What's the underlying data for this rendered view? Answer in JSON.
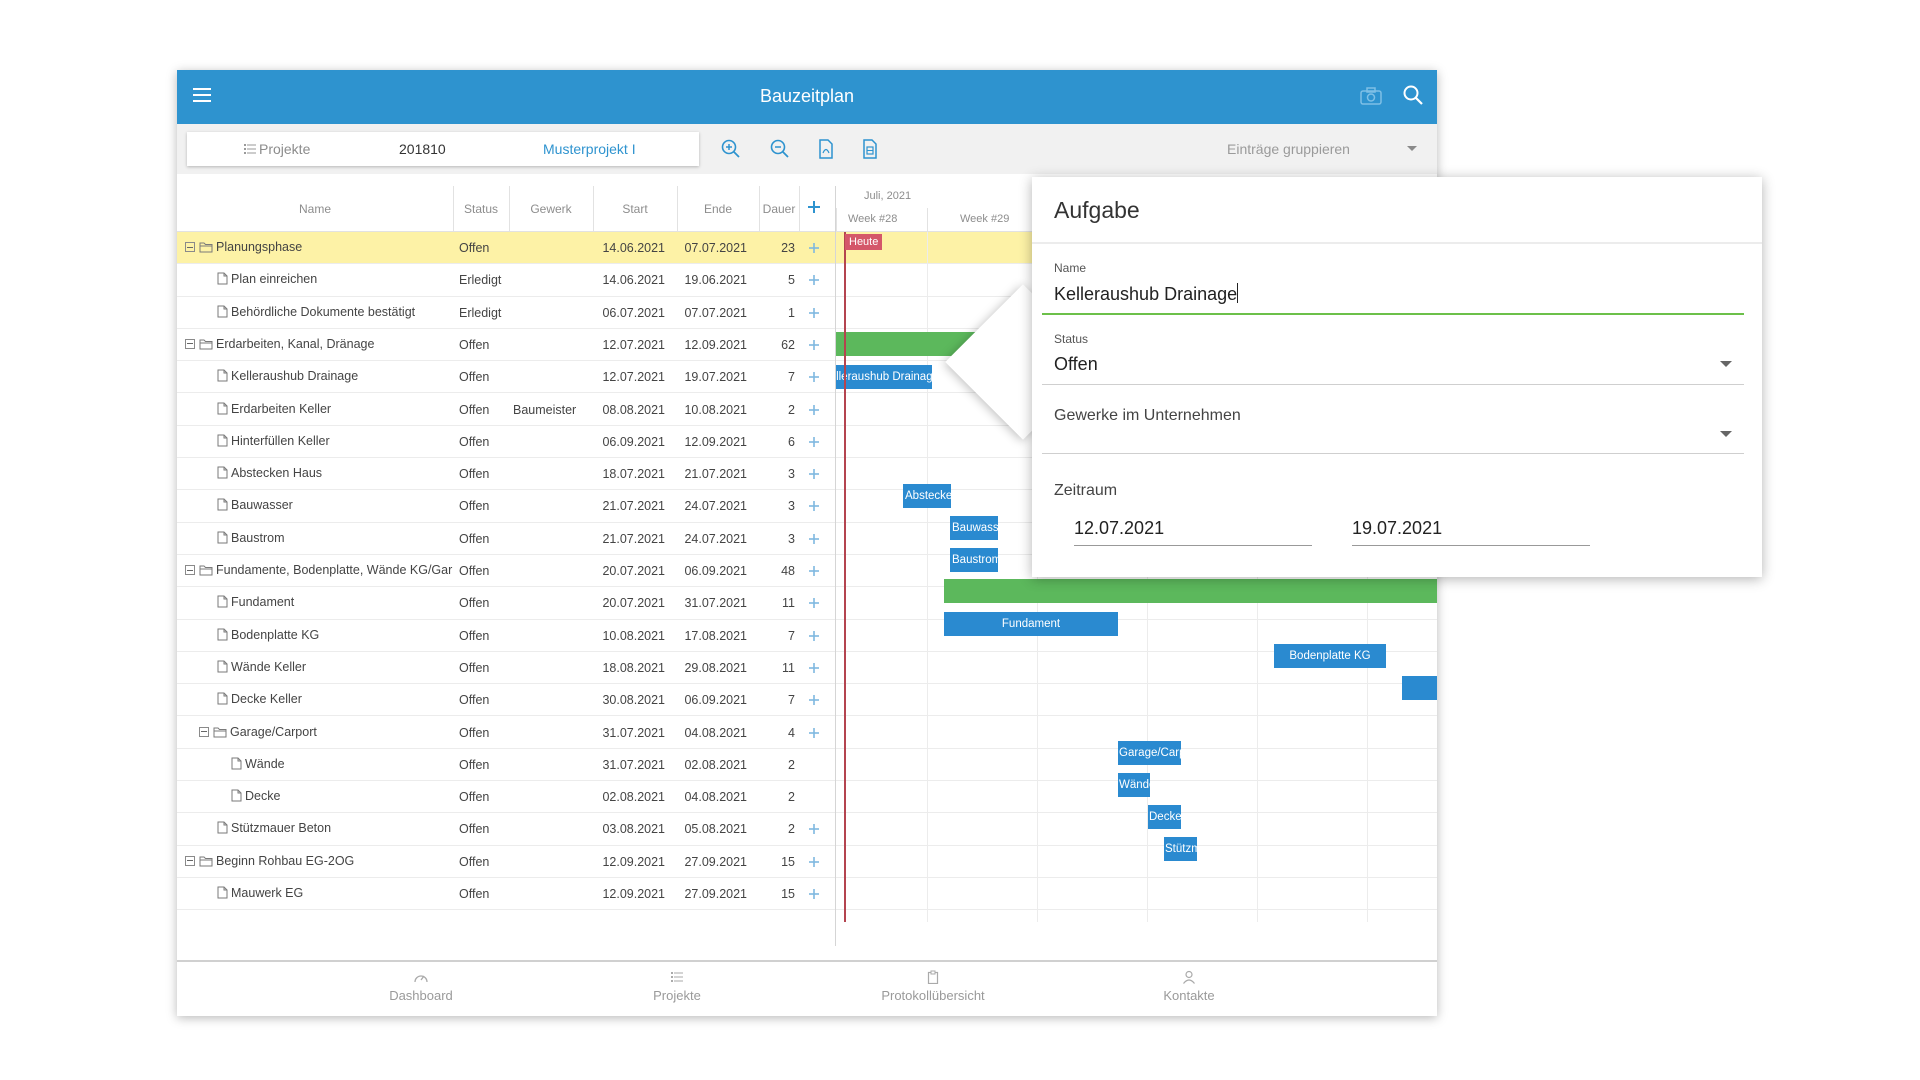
{
  "app": {
    "title": "Bauzeitplan"
  },
  "toolbar": {
    "projects_label": "Projekte",
    "project_number": "201810",
    "project_name": "Musterprojekt I",
    "grouping": "Einträge gruppieren"
  },
  "grid": {
    "columns": [
      "Name",
      "Status",
      "Gewerk",
      "Start",
      "Ende",
      "Dauer"
    ],
    "rows": [
      {
        "name": "Planungsphase",
        "status": "Offen",
        "gewerk": "",
        "start": "14.06.2021",
        "end": "07.07.2021",
        "dur": "23"
      },
      {
        "name": "Plan einreichen",
        "status": "Erledigt",
        "gewerk": "",
        "start": "14.06.2021",
        "end": "19.06.2021",
        "dur": "5"
      },
      {
        "name": "Behördliche Dokumente bestätigt",
        "status": "Erledigt",
        "gewerk": "",
        "start": "06.07.2021",
        "end": "07.07.2021",
        "dur": "1"
      },
      {
        "name": "Erdarbeiten, Kanal, Dränage",
        "status": "Offen",
        "gewerk": "",
        "start": "12.07.2021",
        "end": "12.09.2021",
        "dur": "62"
      },
      {
        "name": "Kelleraushub Drainage",
        "status": "Offen",
        "gewerk": "",
        "start": "12.07.2021",
        "end": "19.07.2021",
        "dur": "7"
      },
      {
        "name": "Erdarbeiten Keller",
        "status": "Offen",
        "gewerk": "Baumeister",
        "start": "08.08.2021",
        "end": "10.08.2021",
        "dur": "2"
      },
      {
        "name": "Hinterfüllen Keller",
        "status": "Offen",
        "gewerk": "",
        "start": "06.09.2021",
        "end": "12.09.2021",
        "dur": "6"
      },
      {
        "name": "Abstecken Haus",
        "status": "Offen",
        "gewerk": "",
        "start": "18.07.2021",
        "end": "21.07.2021",
        "dur": "3"
      },
      {
        "name": "Bauwasser",
        "status": "Offen",
        "gewerk": "",
        "start": "21.07.2021",
        "end": "24.07.2021",
        "dur": "3"
      },
      {
        "name": "Baustrom",
        "status": "Offen",
        "gewerk": "",
        "start": "21.07.2021",
        "end": "24.07.2021",
        "dur": "3"
      },
      {
        "name": "Fundamente, Bodenplatte, Wände KG/Gar",
        "status": "Offen",
        "gewerk": "",
        "start": "20.07.2021",
        "end": "06.09.2021",
        "dur": "48"
      },
      {
        "name": "Fundament",
        "status": "Offen",
        "gewerk": "",
        "start": "20.07.2021",
        "end": "31.07.2021",
        "dur": "11"
      },
      {
        "name": "Bodenplatte KG",
        "status": "Offen",
        "gewerk": "",
        "start": "10.08.2021",
        "end": "17.08.2021",
        "dur": "7"
      },
      {
        "name": "Wände Keller",
        "status": "Offen",
        "gewerk": "",
        "start": "18.08.2021",
        "end": "29.08.2021",
        "dur": "11"
      },
      {
        "name": "Decke Keller",
        "status": "Offen",
        "gewerk": "",
        "start": "30.08.2021",
        "end": "06.09.2021",
        "dur": "7"
      },
      {
        "name": "Garage/Carport",
        "status": "Offen",
        "gewerk": "",
        "start": "31.07.2021",
        "end": "04.08.2021",
        "dur": "4"
      },
      {
        "name": "Wände",
        "status": "Offen",
        "gewerk": "",
        "start": "31.07.2021",
        "end": "02.08.2021",
        "dur": "2"
      },
      {
        "name": "Decke",
        "status": "Offen",
        "gewerk": "",
        "start": "02.08.2021",
        "end": "04.08.2021",
        "dur": "2"
      },
      {
        "name": "Stützmauer Beton",
        "status": "Offen",
        "gewerk": "",
        "start": "03.08.2021",
        "end": "05.08.2021",
        "dur": "2"
      },
      {
        "name": "Beginn Rohbau EG-2OG",
        "status": "Offen",
        "gewerk": "",
        "start": "12.09.2021",
        "end": "27.09.2021",
        "dur": "15"
      },
      {
        "name": "Mauwerk EG",
        "status": "Offen",
        "gewerk": "",
        "start": "12.09.2021",
        "end": "27.09.2021",
        "dur": "15"
      }
    ]
  },
  "gantt": {
    "month": "Juli, 2021",
    "weeks": [
      "Week #28",
      "Week #29"
    ],
    "today_label": "Heute",
    "bars": {
      "kelleraushub": "Kelleraushub Drainage",
      "abstecken": "Abstecken Haus",
      "bauwasser": "Bauwasser",
      "baustrom": "Baustrom",
      "fundament": "Fundament",
      "bodenplatte": "Bodenplatte KG",
      "garage": "Garage/Carport",
      "waende": "Wände",
      "decke": "Decke",
      "stuetz": "Stützmauer Beton"
    }
  },
  "dialog": {
    "title": "Aufgabe",
    "name_label": "Name",
    "name_value": "Kelleraushub Drainage",
    "status_label": "Status",
    "status_value": "Offen",
    "gewerke_label": "Gewerke im Unternehmen",
    "zeitraum_label": "Zeitraum",
    "date_from": "12.07.2021",
    "date_to": "19.07.2021"
  },
  "nav": {
    "dashboard": "Dashboard",
    "projekte": "Projekte",
    "protokoll": "Protokollübersicht",
    "kontakte": "Kontakte"
  },
  "colors": {
    "primary": "#2e93cf",
    "highlight": "#fdf2a6",
    "today": "#b4444f",
    "group_bar": "#5cb85c",
    "task_bar": "#2a8ad0"
  }
}
